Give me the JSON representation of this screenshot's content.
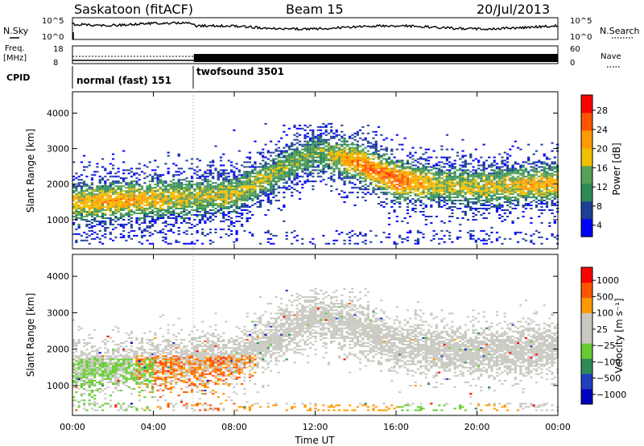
{
  "header": {
    "title": "Saskatoon (fitACF)",
    "beam": "Beam 15",
    "date": "20/Jul/2013"
  },
  "summary": {
    "nsky_label": "N.Sky",
    "nsearch_label": "N.Search",
    "freq_label_1": "Freq.",
    "freq_label_2": "[MHz]",
    "nave_label": "Nave",
    "cpid_label": "CPID",
    "noise_ticks": [
      "10^5",
      "10^0"
    ],
    "freq_ticks": [
      "18",
      "8"
    ],
    "nave_ticks": [
      "60",
      "0"
    ],
    "cpid_segments": [
      {
        "name": "normal (fast) 151",
        "start_hour": 0,
        "end_hour": 6
      },
      {
        "name": "twofsound 3501",
        "start_hour": 6,
        "end_hour": 24
      }
    ]
  },
  "colors": {
    "power": [
      "#0000ff",
      "#1e3f96",
      "#2e8b57",
      "#58a058",
      "#f0c000",
      "#ff9a00",
      "#ff5500",
      "#ff0000"
    ],
    "velocity": [
      "#ff0000",
      "#ff5500",
      "#ff9900",
      "#c8c8c0",
      "#c8c8c0",
      "#66cc33",
      "#2e8b57",
      "#1f3fbf",
      "#0000c0"
    ]
  },
  "chart_data": [
    {
      "type": "heatmap",
      "name": "power",
      "xlabel": "",
      "ylabel": "Slant Range [km]",
      "x_range_hours": [
        0,
        24
      ],
      "ylim": [
        180,
        4600
      ],
      "y_ticks": [
        "4000",
        "3000",
        "2000",
        "1000"
      ],
      "y_tick_values": [
        4000,
        3000,
        2000,
        1000
      ],
      "colorbar": {
        "label": "Power [dB]",
        "ticks": [
          "28",
          "24",
          "20",
          "16",
          "12",
          "8",
          "4"
        ],
        "tick_values": [
          28,
          24,
          20,
          16,
          12,
          8,
          4
        ],
        "range": [
          0,
          30
        ]
      },
      "bands": [
        {
          "hours": [
            0,
            24
          ],
          "center_km": [
            1450,
            1500,
            1550,
            1600,
            1700,
            2300,
            2900,
            2600,
            2100,
            1950,
            1900,
            1950,
            2000
          ],
          "width_km": 450,
          "peak_db": [
            18,
            20,
            18,
            16,
            16,
            14,
            12,
            22,
            24,
            16,
            16,
            18,
            20
          ]
        }
      ]
    },
    {
      "type": "heatmap",
      "name": "velocity",
      "xlabel": "Time UT",
      "ylabel": "Slant Range [km]",
      "x_range_hours": [
        0,
        24
      ],
      "x_ticks": [
        "00:00",
        "04:00",
        "08:00",
        "12:00",
        "16:00",
        "20:00",
        "00:00"
      ],
      "x_tick_values": [
        0,
        4,
        8,
        12,
        16,
        20,
        24
      ],
      "ylim": [
        180,
        4600
      ],
      "y_ticks": [
        "4000",
        "3000",
        "2000",
        "1000"
      ],
      "y_tick_values": [
        4000,
        3000,
        2000,
        1000
      ],
      "colorbar": {
        "label": "Velocity [m s⁻¹]",
        "ticks": [
          "1000",
          "500",
          "100",
          "25",
          "−25",
          "−100",
          "−500",
          "−1000"
        ],
        "tick_values": [
          1000,
          500,
          100,
          25,
          -25,
          -100,
          -500,
          -1000
        ]
      }
    }
  ],
  "panels": {
    "time_label": "Time UT"
  }
}
